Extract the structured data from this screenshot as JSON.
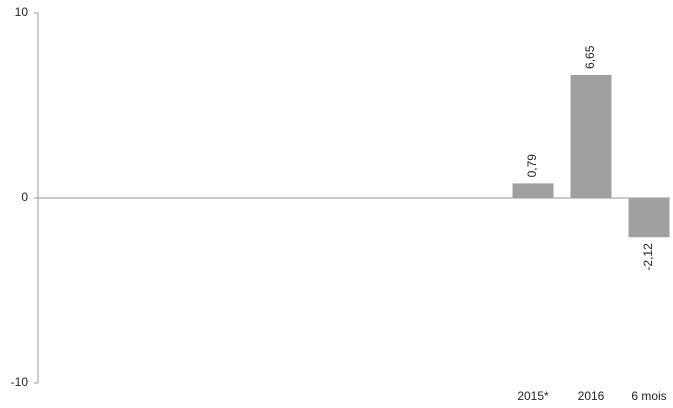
{
  "chart_data": {
    "type": "bar",
    "categories": [
      null,
      null,
      null,
      null,
      null,
      null,
      null,
      null,
      "2015*",
      "2016",
      "6 mois"
    ],
    "values": [
      null,
      null,
      null,
      null,
      null,
      null,
      null,
      null,
      0.79,
      6.65,
      -2.12
    ],
    "value_labels": [
      null,
      null,
      null,
      null,
      null,
      null,
      null,
      null,
      "0,79",
      "6,65",
      "-2,12"
    ],
    "color": "#a0a0a2",
    "ylim": [
      -10,
      10
    ],
    "yticks": [
      -10,
      0,
      10
    ],
    "grid": false
  }
}
